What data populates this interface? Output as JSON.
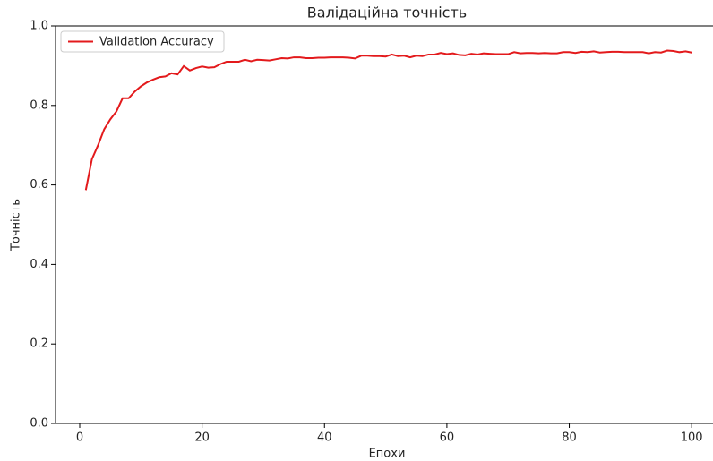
{
  "chart_data": {
    "type": "line",
    "title": "Валідаційна точність",
    "xlabel": "Епохи",
    "ylabel": "Точність",
    "x": [
      1,
      2,
      3,
      4,
      5,
      6,
      7,
      8,
      9,
      10,
      11,
      12,
      13,
      14,
      15,
      16,
      17,
      18,
      19,
      20,
      21,
      22,
      23,
      24,
      25,
      26,
      27,
      28,
      29,
      30,
      31,
      32,
      33,
      34,
      35,
      36,
      37,
      38,
      39,
      40,
      41,
      42,
      43,
      44,
      45,
      46,
      47,
      48,
      49,
      50,
      51,
      52,
      53,
      54,
      55,
      56,
      57,
      58,
      59,
      60,
      61,
      62,
      63,
      64,
      65,
      66,
      67,
      68,
      69,
      70,
      71,
      72,
      73,
      74,
      75,
      76,
      77,
      78,
      79,
      80,
      81,
      82,
      83,
      84,
      85,
      86,
      87,
      88,
      89,
      90,
      91,
      92,
      93,
      94,
      95,
      96,
      97,
      98,
      99,
      100
    ],
    "series": [
      {
        "name": "Validation Accuracy",
        "color": "#e31a1c",
        "values": [
          0.587,
          0.665,
          0.7,
          0.74,
          0.765,
          0.785,
          0.818,
          0.818,
          0.835,
          0.848,
          0.858,
          0.865,
          0.871,
          0.873,
          0.881,
          0.878,
          0.899,
          0.888,
          0.894,
          0.898,
          0.895,
          0.896,
          0.904,
          0.91,
          0.91,
          0.91,
          0.915,
          0.911,
          0.915,
          0.914,
          0.913,
          0.916,
          0.919,
          0.918,
          0.921,
          0.921,
          0.919,
          0.919,
          0.92,
          0.92,
          0.921,
          0.921,
          0.921,
          0.92,
          0.918,
          0.925,
          0.925,
          0.924,
          0.924,
          0.923,
          0.928,
          0.924,
          0.925,
          0.921,
          0.925,
          0.924,
          0.928,
          0.928,
          0.932,
          0.929,
          0.931,
          0.927,
          0.926,
          0.93,
          0.928,
          0.931,
          0.93,
          0.929,
          0.929,
          0.929,
          0.934,
          0.931,
          0.932,
          0.932,
          0.931,
          0.932,
          0.931,
          0.931,
          0.934,
          0.934,
          0.932,
          0.935,
          0.934,
          0.936,
          0.933,
          0.934,
          0.935,
          0.935,
          0.934,
          0.934,
          0.934,
          0.934,
          0.931,
          0.934,
          0.933,
          0.938,
          0.937,
          0.934,
          0.936,
          0.933
        ]
      }
    ],
    "xlim": [
      -3.95,
      104.95
    ],
    "ylim": [
      0,
      1
    ],
    "xticks": [
      0,
      20,
      40,
      60,
      80,
      100
    ],
    "yticks": [
      {
        "value": 0,
        "label": "0.0"
      },
      0.2,
      0.4,
      0.6,
      0.8,
      {
        "value": 1,
        "label": "1.0"
      }
    ],
    "legend": "upper left",
    "grid": false
  }
}
